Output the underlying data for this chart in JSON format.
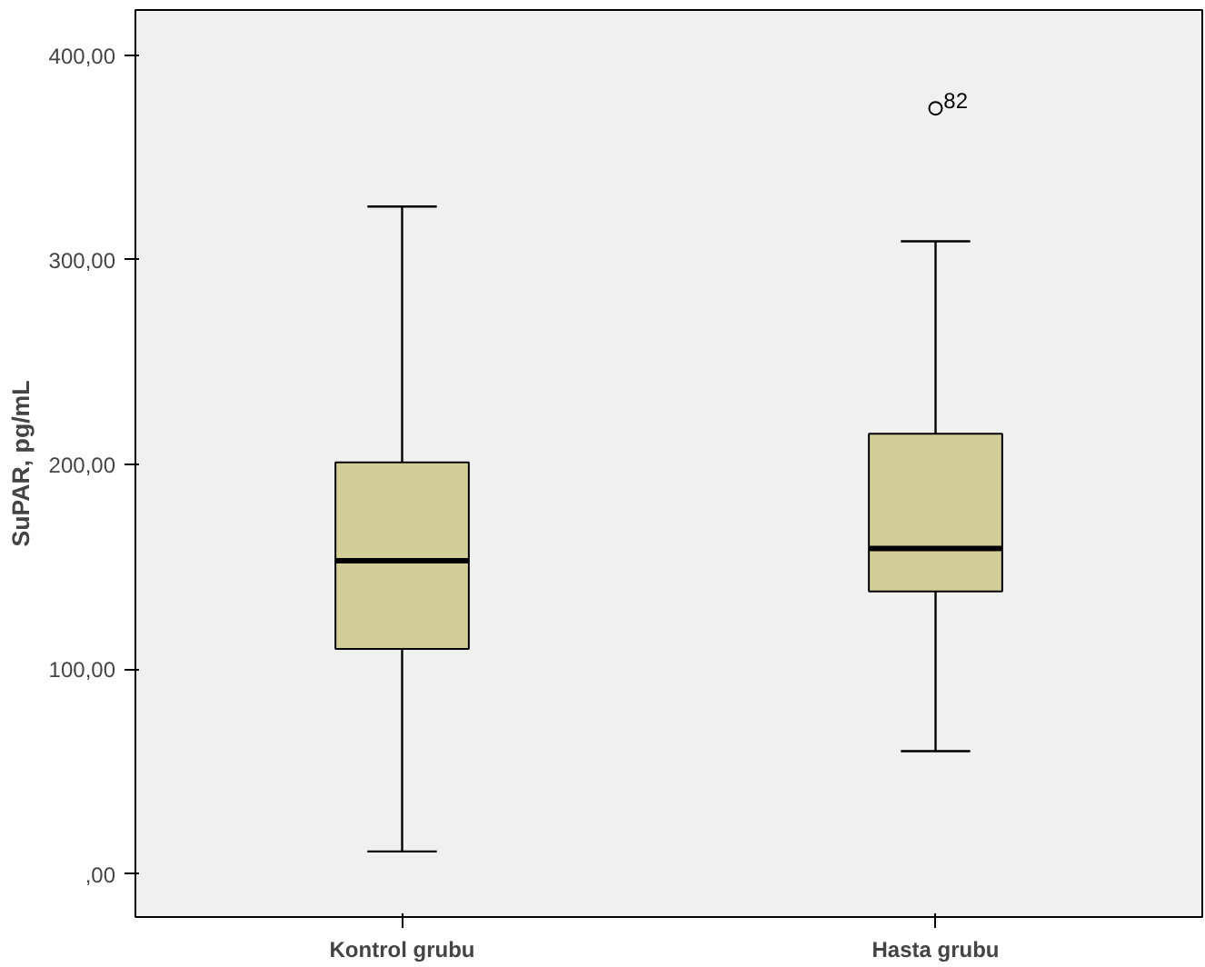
{
  "chart_data": {
    "type": "box",
    "ylabel": "SuPAR, pg/mL",
    "categories": [
      "Kontrol grubu",
      "Hasta grubu"
    ],
    "boxes": [
      {
        "low": 11,
        "q1": 110,
        "median": 153,
        "q3": 201,
        "high": 326
      },
      {
        "low": 60,
        "q1": 138,
        "median": 159,
        "q3": 215,
        "high": 309,
        "outliers": [
          374
        ]
      }
    ],
    "color": "#d3ce97",
    "ylim": [
      -21,
      422
    ],
    "yticks": [
      {
        "value": 0,
        "label": ",00"
      },
      {
        "value": 100,
        "label": "100,00"
      },
      {
        "value": 200,
        "label": "200,00"
      },
      {
        "value": 300,
        "label": "300,00"
      },
      {
        "value": 400,
        "label": "400,00"
      }
    ],
    "annotations": [
      "82"
    ],
    "grid": false
  }
}
